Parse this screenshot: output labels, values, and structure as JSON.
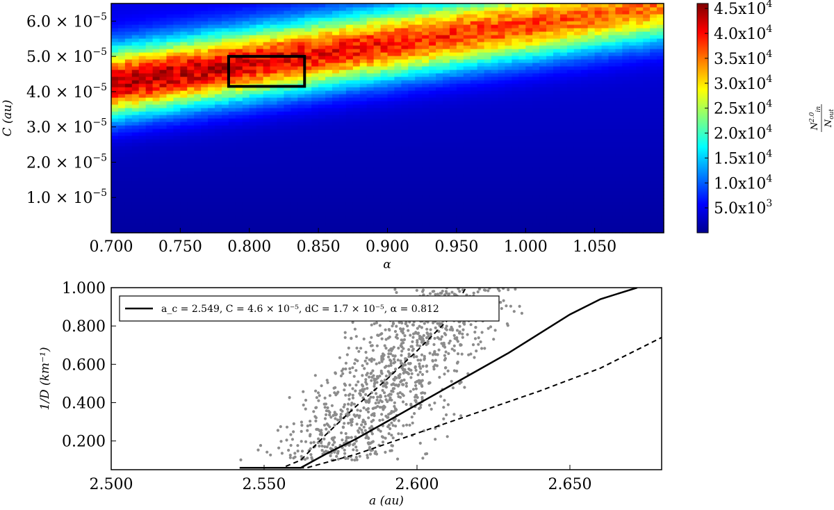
{
  "chart_data": [
    {
      "type": "heatmap",
      "xlabel": "α",
      "ylabel": "C (au)",
      "xlim": [
        0.7,
        1.1
      ],
      "ylim": [
        0.0,
        6.5e-05
      ],
      "x_ticks": [
        {
          "value": 0.7,
          "label": "0.700"
        },
        {
          "value": 0.75,
          "label": "0.750"
        },
        {
          "value": 0.8,
          "label": "0.800"
        },
        {
          "value": 0.85,
          "label": "0.850"
        },
        {
          "value": 0.9,
          "label": "0.900"
        },
        {
          "value": 0.95,
          "label": "0.950"
        },
        {
          "value": 1.0,
          "label": "1.000"
        },
        {
          "value": 1.05,
          "label": "1.050"
        }
      ],
      "y_ticks": [
        {
          "value": 1e-05,
          "mantissa": "1.0 × 10",
          "exp": "−5"
        },
        {
          "value": 2e-05,
          "mantissa": "2.0 × 10",
          "exp": "−5"
        },
        {
          "value": 3e-05,
          "mantissa": "3.0 × 10",
          "exp": "−5"
        },
        {
          "value": 4e-05,
          "mantissa": "4.0 × 10",
          "exp": "−5"
        },
        {
          "value": 5e-05,
          "mantissa": "5.0 × 10",
          "exp": "−5"
        },
        {
          "value": 6e-05,
          "mantissa": "6.0 × 10",
          "exp": "−5"
        }
      ],
      "colorbar": {
        "label": "N_in^2.0 / N_out",
        "range": [
          0,
          46000
        ],
        "ticks": [
          {
            "value": 5000,
            "mantissa": "5.0x10",
            "exp": "3"
          },
          {
            "value": 10000,
            "mantissa": "1.0x10",
            "exp": "4"
          },
          {
            "value": 15000,
            "mantissa": "1.5x10",
            "exp": "4"
          },
          {
            "value": 20000,
            "mantissa": "2.0x10",
            "exp": "4"
          },
          {
            "value": 25000,
            "mantissa": "2.5x10",
            "exp": "4"
          },
          {
            "value": 30000,
            "mantissa": "3.0x10",
            "exp": "4"
          },
          {
            "value": 35000,
            "mantissa": "3.5x10",
            "exp": "4"
          },
          {
            "value": 40000,
            "mantissa": "4.0x10",
            "exp": "4"
          },
          {
            "value": 45000,
            "mantissa": "4.5x10",
            "exp": "4"
          }
        ]
      },
      "ridge": {
        "alpha": [
          0.7,
          1.1
        ],
        "C": [
          4.25e-05,
          6.45e-05
        ],
        "peak": 46000,
        "width": 9.5e-06
      },
      "highlight_box": {
        "alpha": [
          0.785,
          0.84
        ],
        "C": [
          4.15e-05,
          5e-05
        ]
      },
      "grid": false
    },
    {
      "type": "scatter",
      "xlabel": "a (au)",
      "ylabel": "1/D (km⁻¹)",
      "xlim": [
        2.5,
        2.68
      ],
      "ylim": [
        0.05,
        1.0
      ],
      "x_ticks": [
        {
          "value": 2.5,
          "label": "2.500"
        },
        {
          "value": 2.55,
          "label": "2.550"
        },
        {
          "value": 2.6,
          "label": "2.600"
        },
        {
          "value": 2.65,
          "label": "2.650"
        }
      ],
      "y_ticks": [
        {
          "value": 0.2,
          "label": "0.200"
        },
        {
          "value": 0.4,
          "label": "0.400"
        },
        {
          "value": 0.6,
          "label": "0.600"
        },
        {
          "value": 0.8,
          "label": "0.800"
        },
        {
          "value": 1.0,
          "label": "1.000"
        }
      ],
      "legend": {
        "position": "top-left",
        "text": "a_c = 2.549, C = 4.6 × 10⁻⁵, dC = 1.7 × 10⁻⁵, α = 0.812"
      },
      "lines": [
        {
          "style": "solid",
          "x": [
            2.542,
            2.549,
            2.555,
            2.562,
            2.57,
            2.58,
            2.59,
            2.6,
            2.61,
            2.62,
            2.63,
            2.64,
            2.65,
            2.66,
            2.672
          ],
          "y": [
            0.06,
            0.06,
            0.06,
            0.06,
            0.13,
            0.21,
            0.3,
            0.39,
            0.48,
            0.57,
            0.66,
            0.76,
            0.86,
            0.94,
            1.0
          ]
        },
        {
          "style": "dashed",
          "x": [
            2.549,
            2.556,
            2.562,
            2.57,
            2.58,
            2.59,
            2.6,
            2.61,
            2.616
          ],
          "y": [
            0.06,
            0.06,
            0.1,
            0.23,
            0.38,
            0.52,
            0.67,
            0.83,
            1.0
          ]
        },
        {
          "style": "dashed",
          "x": [
            2.556,
            2.564,
            2.58,
            2.6,
            2.62,
            2.64,
            2.66,
            2.68
          ],
          "y": [
            0.06,
            0.06,
            0.13,
            0.24,
            0.35,
            0.46,
            0.58,
            0.74
          ]
        }
      ],
      "scatter_cloud": {
        "color": "#8c8c8c",
        "count": 1100,
        "x_range": [
          2.53,
          2.652
        ],
        "y_range": [
          0.1,
          1.0
        ],
        "seed": 7
      },
      "grid": false
    }
  ]
}
